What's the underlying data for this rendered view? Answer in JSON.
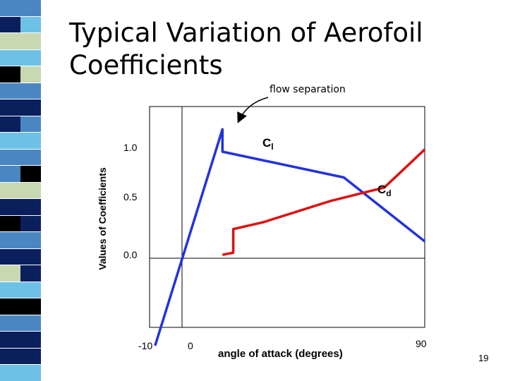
{
  "slide": {
    "title_line1": "Typical Variation of Aerofoil",
    "title_line2": "Coefficients",
    "page_number": "19"
  },
  "colors": {
    "strip": [
      "#4a87c2",
      "#0a1f5c",
      "#4a87c2",
      "#6ec1e6",
      "#0a1f5c",
      "#000000",
      "#c8d8b0"
    ],
    "cl_series": "#2233dd",
    "cd_series": "#dd1111"
  },
  "chart_data": {
    "type": "line",
    "annotation": "flow separation",
    "ylabel": "Values of Coefficients",
    "xlabel": "angle of attack (degrees)",
    "y_ticks": [
      "1.0",
      "0.5",
      "0.0"
    ],
    "x_ticks": [
      "-10",
      "0",
      "90"
    ],
    "series": [
      {
        "name": "Cl",
        "label_main": "C",
        "label_sub": "l",
        "points": [
          [
            -10,
            -0.78
          ],
          [
            15,
            1.15
          ],
          [
            15,
            0.95
          ],
          [
            60,
            0.72
          ],
          [
            90,
            0.15
          ]
        ]
      },
      {
        "name": "Cd",
        "label_main": "C",
        "label_sub": "d",
        "points": [
          [
            15,
            0.03
          ],
          [
            19,
            0.05
          ],
          [
            19,
            0.26
          ],
          [
            30,
            0.32
          ],
          [
            55,
            0.51
          ],
          [
            75,
            0.63
          ],
          [
            90,
            0.97
          ]
        ]
      }
    ]
  }
}
